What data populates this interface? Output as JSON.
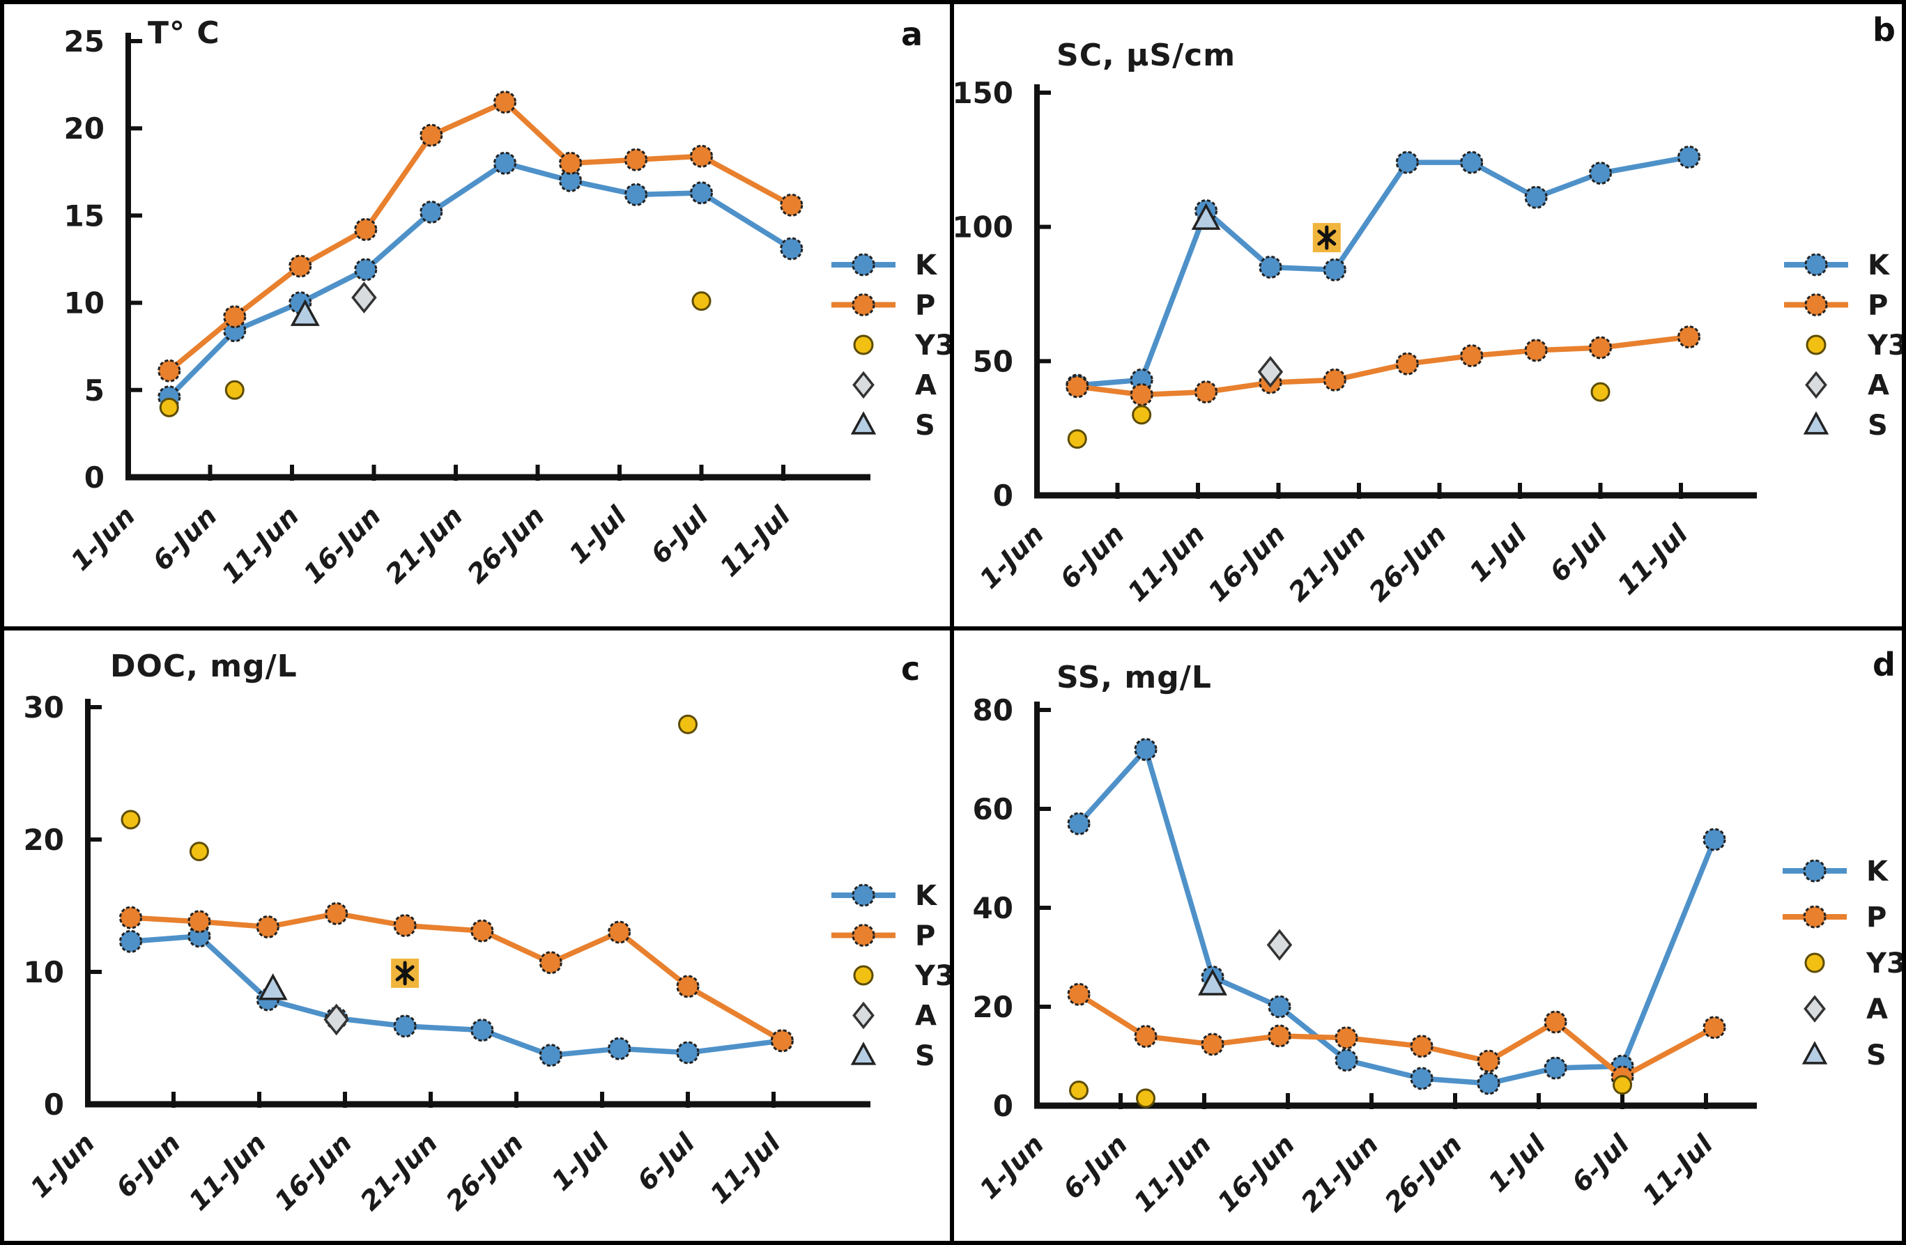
{
  "figure": {
    "description": "Four-panel water quality time series (June-July)",
    "x_axis": {
      "tick_labels": [
        "1-Jun",
        "6-Jun",
        "11-Jun",
        "16-Jun",
        "21-Jun",
        "26-Jun",
        "1-Jul",
        "6-Jul",
        "11-Jul"
      ],
      "tick_days": [
        0,
        5,
        10,
        15,
        20,
        25,
        30,
        35,
        40
      ]
    },
    "legend": {
      "entries": [
        "K",
        "P",
        "Y3",
        "A",
        "S"
      ]
    }
  },
  "colors": {
    "K": "#4E91C9",
    "P": "#E8802E",
    "Y3": "#F2C012",
    "Y3_stroke": "#5d4c00",
    "A_fill": "#D9DCDF",
    "A_stroke": "#333333",
    "S_fill": "#B6CEE4",
    "marker_stroke": "#222222",
    "asterisk_bg": "#F0B53C",
    "asterisk_stroke": "#111111",
    "axis": "#111111",
    "text": "#1a1a1a"
  },
  "chart_data": [
    {
      "type": "line",
      "panel_letter": "a",
      "title": "T° C",
      "ylim": [
        0,
        25
      ],
      "yticks": [
        0,
        5,
        10,
        15,
        20,
        25
      ],
      "x_days": [
        2.5,
        6.5,
        10.5,
        14.5,
        18.5,
        23,
        27,
        31,
        35,
        40.5
      ],
      "x_dates": [
        "3-Jun",
        "7-Jun",
        "11-Jun",
        "15-Jun",
        "19-Jun",
        "24-Jun",
        "28-Jun",
        "2-Jul",
        "6-Jul",
        "11-Jul"
      ],
      "series": [
        {
          "name": "K",
          "values": [
            4.6,
            8.4,
            10.0,
            11.9,
            15.2,
            18.0,
            17.0,
            16.2,
            16.3,
            13.1
          ]
        },
        {
          "name": "P",
          "values": [
            6.1,
            9.2,
            12.1,
            14.2,
            19.6,
            21.5,
            18.0,
            18.2,
            18.4,
            15.6
          ]
        }
      ],
      "point_series": [
        {
          "name": "Y3",
          "points": [
            {
              "day": 2.5,
              "value": 4.0
            },
            {
              "day": 6.5,
              "value": 5.0
            },
            {
              "day": 35,
              "value": 10.1
            }
          ]
        },
        {
          "name": "A",
          "points": [
            {
              "day": 14.4,
              "value": 10.3
            }
          ]
        },
        {
          "name": "S",
          "points": [
            {
              "day": 10.8,
              "value": 9.3
            }
          ]
        }
      ],
      "asterisk_points": []
    },
    {
      "type": "line",
      "panel_letter": "b",
      "title": "SC, µS/cm",
      "ylim": [
        0,
        150
      ],
      "yticks": [
        0,
        50,
        100,
        150
      ],
      "x_days": [
        2.5,
        6.5,
        10.5,
        14.5,
        18.5,
        23,
        27,
        31,
        35,
        40.5
      ],
      "x_dates": [
        "3-Jun",
        "7-Jun",
        "11-Jun",
        "15-Jun",
        "19-Jun",
        "24-Jun",
        "28-Jun",
        "2-Jul",
        "6-Jul",
        "11-Jul"
      ],
      "series": [
        {
          "name": "K",
          "values": [
            41,
            43,
            106,
            85,
            84,
            124,
            124,
            111,
            120,
            126
          ]
        },
        {
          "name": "P",
          "values": [
            40.5,
            37.5,
            38.5,
            42,
            43,
            49,
            52,
            54,
            55,
            59
          ]
        }
      ],
      "point_series": [
        {
          "name": "Y3",
          "points": [
            {
              "day": 2.5,
              "value": 21
            },
            {
              "day": 6.5,
              "value": 30
            },
            {
              "day": 35,
              "value": 38.5
            }
          ]
        },
        {
          "name": "A",
          "points": [
            {
              "day": 14.5,
              "value": 46
            }
          ]
        },
        {
          "name": "S",
          "points": [
            {
              "day": 10.5,
              "value": 103
            }
          ]
        }
      ],
      "asterisk_points": [
        {
          "day": 18,
          "value": 96
        }
      ]
    },
    {
      "type": "line",
      "panel_letter": "c",
      "title": "DOC, mg/L",
      "ylim": [
        0,
        30
      ],
      "yticks": [
        0,
        10,
        20,
        30
      ],
      "x_days": [
        2.5,
        6.5,
        10.5,
        14.5,
        18.5,
        23,
        27,
        31,
        35,
        40.5
      ],
      "x_dates": [
        "3-Jun",
        "7-Jun",
        "11-Jun",
        "15-Jun",
        "19-Jun",
        "24-Jun",
        "28-Jun",
        "2-Jul",
        "6-Jul",
        "11-Jul"
      ],
      "series": [
        {
          "name": "K",
          "values": [
            12.3,
            12.7,
            7.9,
            6.5,
            5.9,
            5.6,
            3.7,
            4.2,
            3.9,
            4.8
          ]
        },
        {
          "name": "P",
          "values": [
            14.1,
            13.8,
            13.4,
            14.4,
            13.5,
            13.1,
            10.7,
            13.0,
            8.9,
            4.8
          ]
        }
      ],
      "point_series": [
        {
          "name": "Y3",
          "points": [
            {
              "day": 2.5,
              "value": 21.5
            },
            {
              "day": 6.5,
              "value": 19.1
            },
            {
              "day": 35,
              "value": 28.7
            }
          ]
        },
        {
          "name": "A",
          "points": [
            {
              "day": 14.5,
              "value": 6.4
            }
          ]
        },
        {
          "name": "S",
          "points": [
            {
              "day": 10.8,
              "value": 8.7
            }
          ]
        }
      ],
      "asterisk_points": [
        {
          "day": 18.5,
          "value": 9.9
        }
      ]
    },
    {
      "type": "line",
      "panel_letter": "d",
      "title": "SS, mg/L",
      "ylim": [
        0,
        80
      ],
      "yticks": [
        0,
        20,
        40,
        60,
        80
      ],
      "x_days": [
        2.5,
        6.5,
        10.5,
        14.5,
        18.5,
        23,
        27,
        31,
        35,
        40.5
      ],
      "x_dates": [
        "3-Jun",
        "7-Jun",
        "11-Jun",
        "15-Jun",
        "19-Jun",
        "24-Jun",
        "28-Jun",
        "2-Jul",
        "6-Jul",
        "11-Jul"
      ],
      "series": [
        {
          "name": "K",
          "values": [
            57,
            72,
            26,
            20,
            9.2,
            5.5,
            4.5,
            7.6,
            8.0,
            53.8
          ]
        },
        {
          "name": "P",
          "values": [
            22.5,
            14,
            12.4,
            14.1,
            13.7,
            12.0,
            9.0,
            16.9,
            5.8,
            15.8
          ]
        }
      ],
      "point_series": [
        {
          "name": "Y3",
          "points": [
            {
              "day": 2.5,
              "value": 3.1
            },
            {
              "day": 6.5,
              "value": 1.5
            },
            {
              "day": 35,
              "value": 4.2
            }
          ]
        },
        {
          "name": "A",
          "points": [
            {
              "day": 14.5,
              "value": 32.5
            }
          ]
        },
        {
          "name": "S",
          "points": [
            {
              "day": 10.5,
              "value": 24.5
            }
          ]
        }
      ],
      "asterisk_points": []
    }
  ]
}
